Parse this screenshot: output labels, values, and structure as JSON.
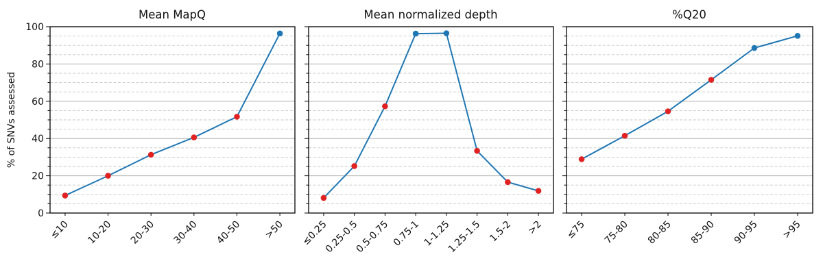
{
  "figure": {
    "ylabel": "% of SNVs assessed",
    "ylim": [
      0,
      100
    ],
    "yticks": [
      0,
      20,
      40,
      60,
      80,
      100
    ],
    "grid": {
      "major_step": 20,
      "minor_step": 5,
      "major_style": "solid",
      "minor_style": "dashed"
    },
    "legend": "none",
    "colors": {
      "line": "#1f77b4",
      "marker_blue": "#1f77b4",
      "marker_red": "#e02222",
      "grid_major": "#b0b0b0",
      "grid_minor": "#c6c6c6",
      "spine": "#000000",
      "text": "#111111"
    }
  },
  "chart_data": [
    {
      "type": "line",
      "title": "Mean MapQ",
      "xlabel": "",
      "ylabel": "% of SNVs assessed",
      "ylim": [
        0,
        100
      ],
      "categories": [
        "≤10",
        "10-20",
        "20-30",
        "30-40",
        "40-50",
        ">50"
      ],
      "values": [
        9.4,
        20.0,
        31.3,
        40.6,
        51.7,
        96.4
      ],
      "marker_colors": [
        "red",
        "red",
        "red",
        "red",
        "red",
        "blue"
      ],
      "show_y_tick_labels": true
    },
    {
      "type": "line",
      "title": "Mean normalized depth",
      "xlabel": "",
      "ylabel": "",
      "ylim": [
        0,
        100
      ],
      "categories": [
        "≤0.25",
        "0.25-0.5",
        "0.5-0.75",
        "0.75-1",
        "1-1.25",
        "1.25-1.5",
        "1.5-2",
        ">2"
      ],
      "values": [
        8.1,
        25.2,
        57.3,
        96.3,
        96.5,
        33.4,
        16.6,
        11.9
      ],
      "marker_colors": [
        "red",
        "red",
        "red",
        "blue",
        "blue",
        "red",
        "red",
        "red"
      ],
      "show_y_tick_labels": false
    },
    {
      "type": "line",
      "title": "%Q20",
      "xlabel": "",
      "ylabel": "",
      "ylim": [
        0,
        100
      ],
      "categories": [
        "≤75",
        "75-80",
        "80-85",
        "85-90",
        "90-95",
        ">95"
      ],
      "values": [
        28.9,
        41.5,
        54.6,
        71.5,
        88.6,
        95.1
      ],
      "marker_colors": [
        "red",
        "red",
        "red",
        "red",
        "blue",
        "blue"
      ],
      "show_y_tick_labels": false
    }
  ]
}
